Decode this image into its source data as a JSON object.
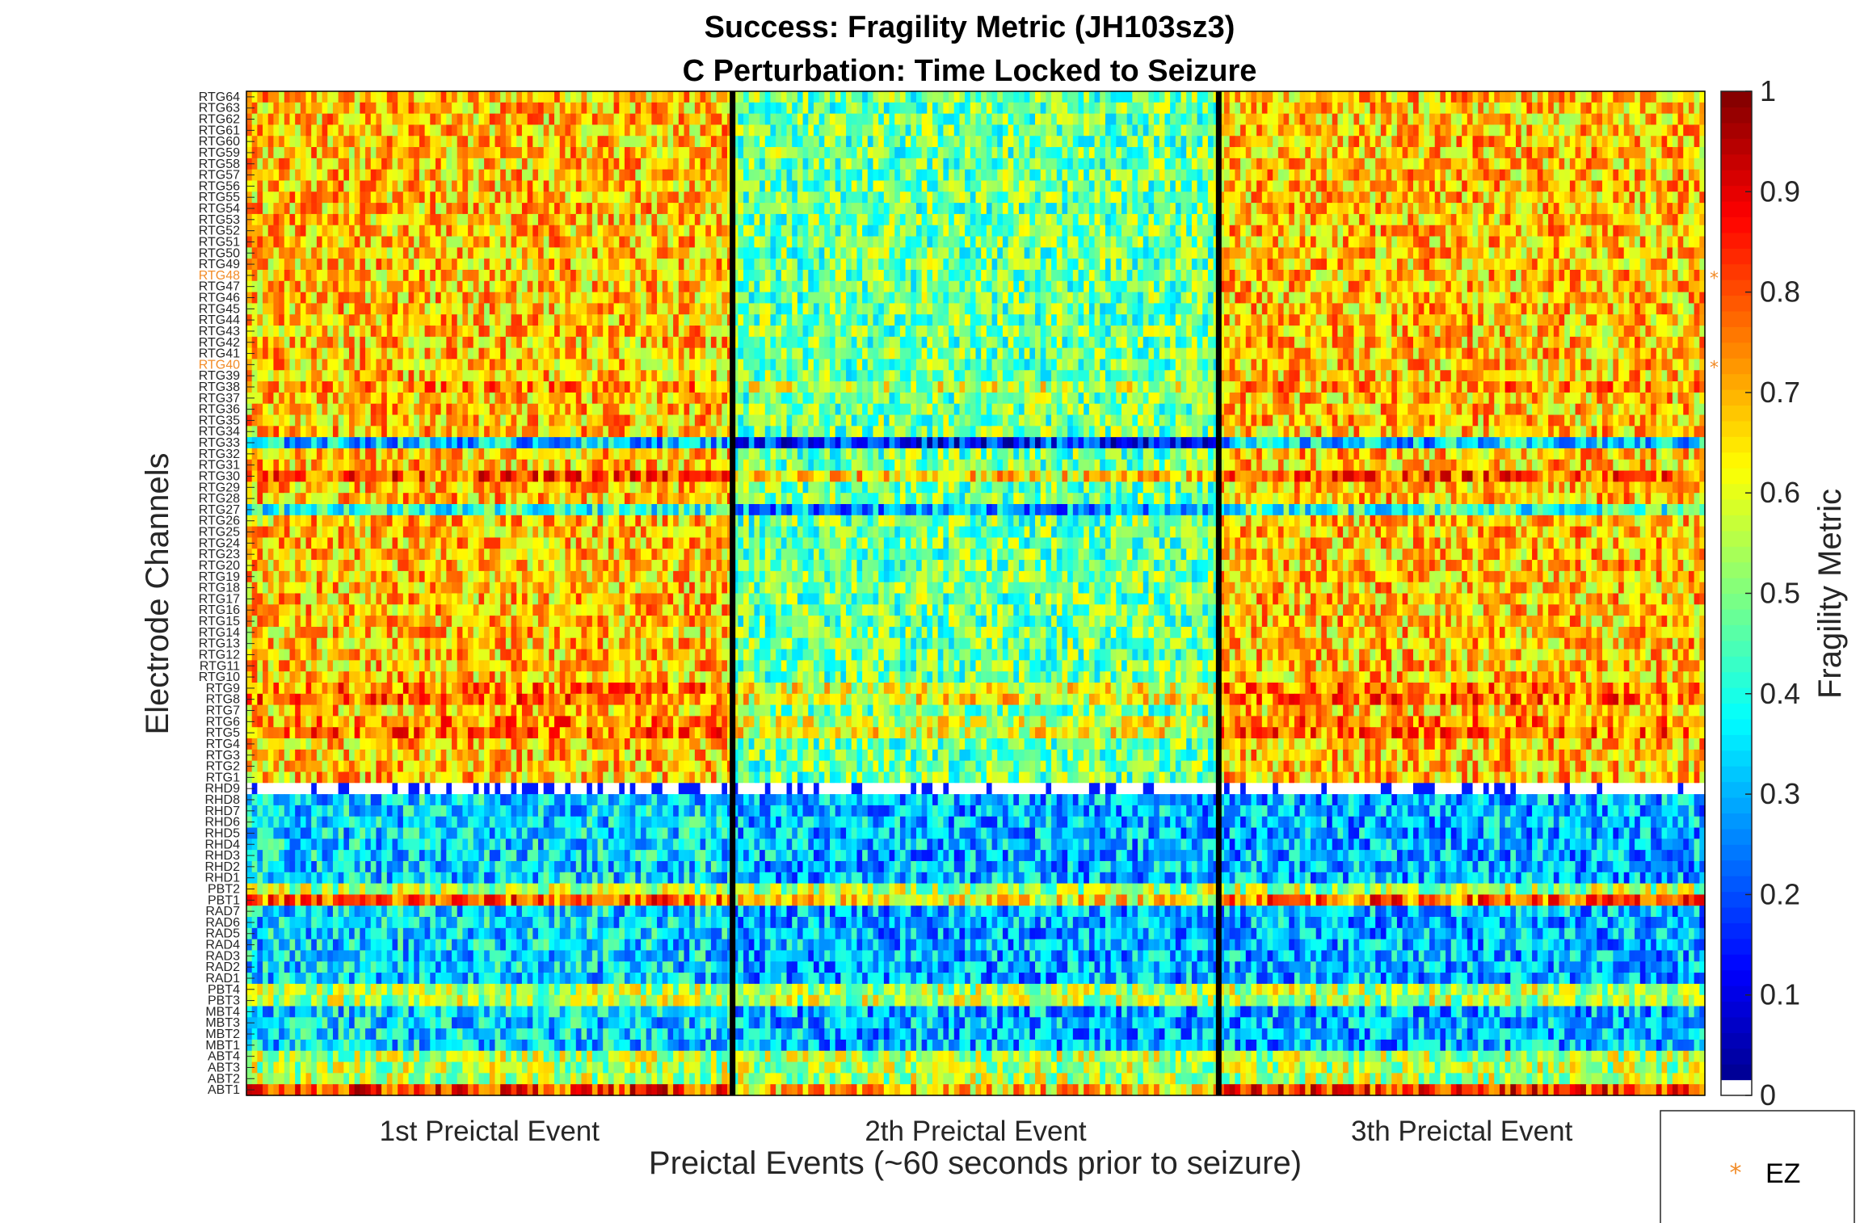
{
  "chart_data": {
    "type": "heatmap",
    "title": [
      "Success: Fragility Metric (JH103sz3)",
      "C Perturbation:  Time Locked to Seizure"
    ],
    "xlabel": "Preictal Events (~60 seconds prior to seizure)",
    "ylabel": "Electrode Channels",
    "x_categories": [
      "1st Preictal Event",
      "2th Preictal Event",
      "3th Preictal Event"
    ],
    "event_boundaries": [
      1,
      2
    ],
    "y_channels_top_to_bottom": [
      "RTG64",
      "RTG63",
      "RTG62",
      "RTG61",
      "RTG60",
      "RTG59",
      "RTG58",
      "RTG57",
      "RTG56",
      "RTG55",
      "RTG54",
      "RTG53",
      "RTG52",
      "RTG51",
      "RTG50",
      "RTG49",
      "RTG48",
      "RTG47",
      "RTG46",
      "RTG45",
      "RTG44",
      "RTG43",
      "RTG42",
      "RTG41",
      "RTG40",
      "RTG39",
      "RTG38",
      "RTG37",
      "RTG36",
      "RTG35",
      "RTG34",
      "RTG33",
      "RTG32",
      "RTG31",
      "RTG30",
      "RTG29",
      "RTG28",
      "RTG27",
      "RTG26",
      "RTG25",
      "RTG24",
      "RTG23",
      "RTG20",
      "RTG19",
      "RTG18",
      "RTG17",
      "RTG16",
      "RTG15",
      "RTG14",
      "RTG13",
      "RTG12",
      "RTG11",
      "RTG10",
      "RTG9",
      "RTG8",
      "RTG7",
      "RTG6",
      "RTG5",
      "RTG4",
      "RTG3",
      "RTG2",
      "RTG1",
      "RHD9",
      "RHD8",
      "RHD7",
      "RHD6",
      "RHD5",
      "RHD4",
      "RHD3",
      "RHD2",
      "RHD1",
      "PBT2",
      "PBT1",
      "RAD7",
      "RAD6",
      "RAD5",
      "RAD4",
      "RAD3",
      "RAD2",
      "RAD1",
      "PBT4",
      "PBT3",
      "MBT4",
      "MBT3",
      "MBT2",
      "MBT1",
      "ABT4",
      "ABT3",
      "ABT2",
      "ABT1"
    ],
    "ez_channels": [
      "RTG48",
      "RTG40"
    ],
    "colorbar": {
      "label": "Fragility Metric",
      "range": [
        0,
        1
      ],
      "ticks": [
        "0",
        "0.1",
        "0.2",
        "0.3",
        "0.4",
        "0.5",
        "0.6",
        "0.7",
        "0.8",
        "0.9",
        "1"
      ],
      "colormap": "jet"
    },
    "legend": {
      "entries": [
        {
          "marker": "*",
          "label": "EZ",
          "color": "#f28c28"
        }
      ],
      "placement": "bottom-right"
    }
  }
}
